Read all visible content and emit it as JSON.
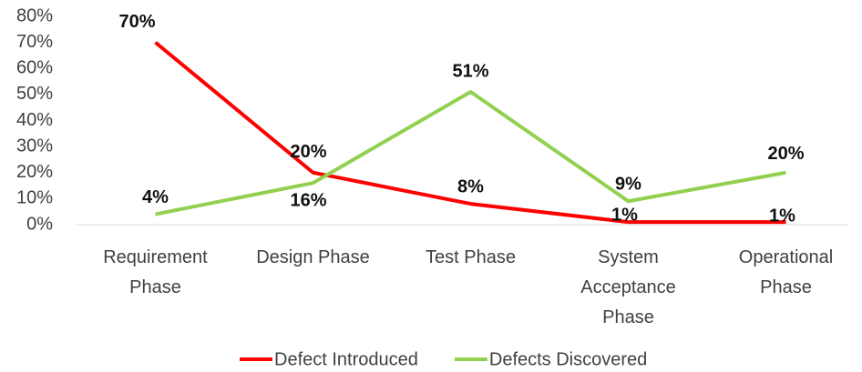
{
  "chart_data": {
    "type": "line",
    "categories": [
      "Requirement Phase",
      "Design Phase",
      "Test Phase",
      "System Acceptance Phase",
      "Operational Phase"
    ],
    "series": [
      {
        "name": "Defect Introduced",
        "color": "#ff0000",
        "values": [
          70,
          20,
          8,
          1,
          1
        ],
        "value_labels": [
          "70%",
          "20%",
          "8%",
          "1%",
          "1%"
        ]
      },
      {
        "name": "Defects Discovered",
        "color": "#92d050",
        "values": [
          4,
          16,
          51,
          9,
          20
        ],
        "value_labels": [
          "4%",
          "16%",
          "51%",
          "9%",
          "20%"
        ]
      }
    ],
    "ylim": [
      0,
      80
    ],
    "yticks": [
      {
        "value": 0,
        "label": "0%"
      },
      {
        "value": 10,
        "label": "10%"
      },
      {
        "value": 20,
        "label": "20%"
      },
      {
        "value": 30,
        "label": "30%"
      },
      {
        "value": 40,
        "label": "40%"
      },
      {
        "value": 50,
        "label": "50%"
      },
      {
        "value": 60,
        "label": "60%"
      },
      {
        "value": 70,
        "label": "70%"
      },
      {
        "value": 80,
        "label": "80%"
      }
    ],
    "legend": "bottom"
  }
}
